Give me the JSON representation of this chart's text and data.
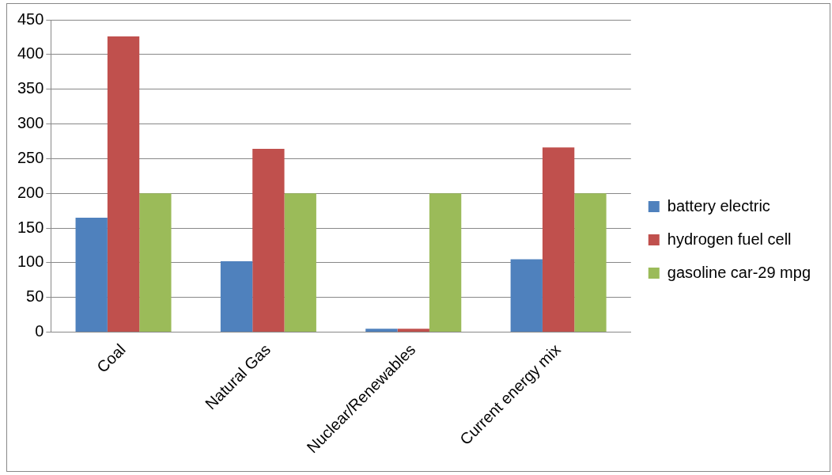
{
  "chart_data": {
    "type": "bar",
    "categories": [
      "Coal",
      "Natural Gas",
      "Nuclear/Renewables",
      "Current energy mix"
    ],
    "series": [
      {
        "name": "battery electric",
        "color": "#4f81bd",
        "values": [
          165,
          102,
          5,
          105
        ]
      },
      {
        "name": "hydrogen fuel cell",
        "color": "#c0504d",
        "values": [
          426,
          264,
          5,
          266
        ]
      },
      {
        "name": "gasoline car-29 mpg",
        "color": "#9bbb59",
        "values": [
          200,
          200,
          200,
          200
        ]
      }
    ],
    "ylim": [
      0,
      450
    ],
    "yticks": [
      0,
      50,
      100,
      150,
      200,
      250,
      300,
      350,
      400,
      450
    ],
    "grid": "y",
    "legend": "right"
  }
}
